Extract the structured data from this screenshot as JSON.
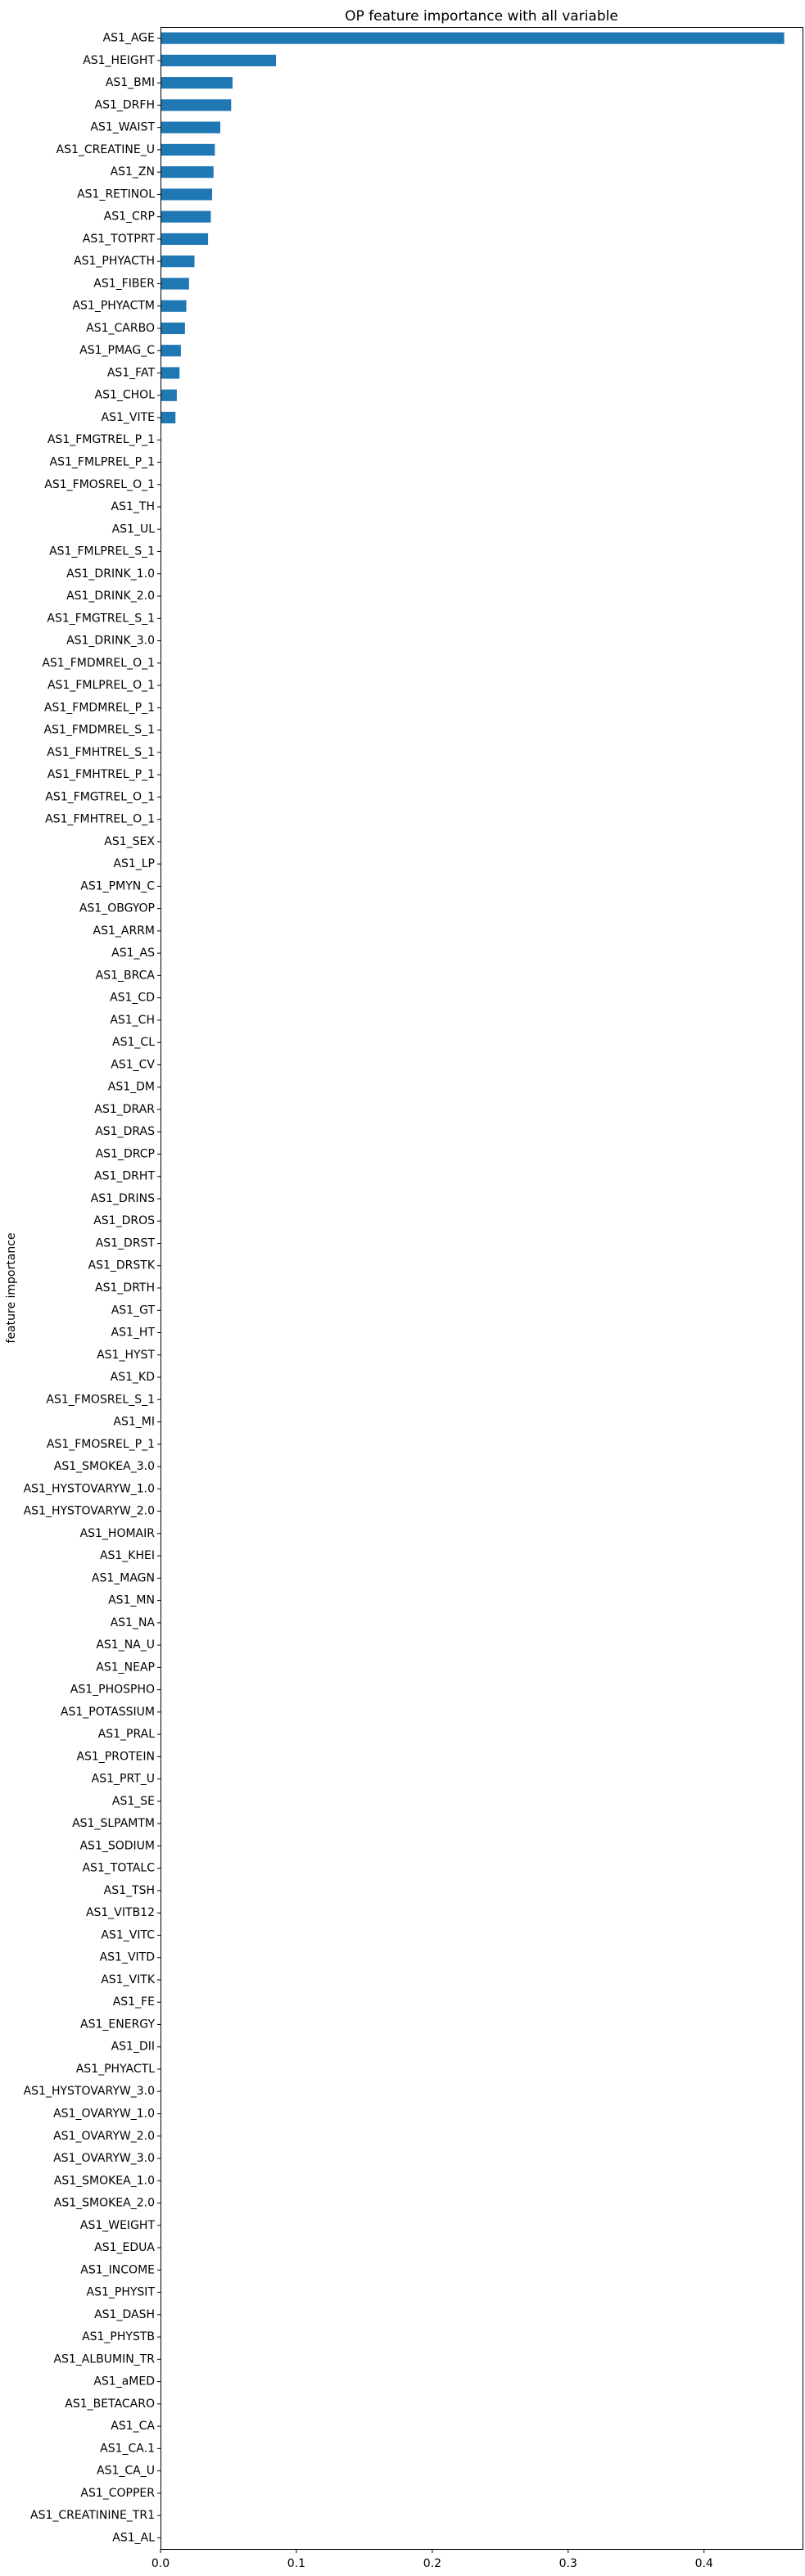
{
  "chart_data": {
    "type": "bar",
    "orientation": "horizontal",
    "title": "OP feature importance with all variable",
    "ylabel": "feature importance",
    "xlabel": "",
    "xlim": [
      0,
      0.4725
    ],
    "xticks": [
      "0.0",
      "0.1",
      "0.2",
      "0.3",
      "0.4"
    ],
    "grid": false,
    "bar_color": "#1f77b4",
    "categories": [
      "AS1_AGE",
      "AS1_HEIGHT",
      "AS1_BMI",
      "AS1_DRFH",
      "AS1_WAIST",
      "AS1_CREATINE_U",
      "AS1_ZN",
      "AS1_RETINOL",
      "AS1_CRP",
      "AS1_TOTPRT",
      "AS1_PHYACTH",
      "AS1_FIBER",
      "AS1_PHYACTM",
      "AS1_CARBO",
      "AS1_PMAG_C",
      "AS1_FAT",
      "AS1_CHOL",
      "AS1_VITE",
      "AS1_FMGTREL_P_1",
      "AS1_FMLPREL_P_1",
      "AS1_FMOSREL_O_1",
      "AS1_TH",
      "AS1_UL",
      "AS1_FMLPREL_S_1",
      "AS1_DRINK_1.0",
      "AS1_DRINK_2.0",
      "AS1_FMGTREL_S_1",
      "AS1_DRINK_3.0",
      "AS1_FMDMREL_O_1",
      "AS1_FMLPREL_O_1",
      "AS1_FMDMREL_P_1",
      "AS1_FMDMREL_S_1",
      "AS1_FMHTREL_S_1",
      "AS1_FMHTREL_P_1",
      "AS1_FMGTREL_O_1",
      "AS1_FMHTREL_O_1",
      "AS1_SEX",
      "AS1_LP",
      "AS1_PMYN_C",
      "AS1_OBGYOP",
      "AS1_ARRM",
      "AS1_AS",
      "AS1_BRCA",
      "AS1_CD",
      "AS1_CH",
      "AS1_CL",
      "AS1_CV",
      "AS1_DM",
      "AS1_DRAR",
      "AS1_DRAS",
      "AS1_DRCP",
      "AS1_DRHT",
      "AS1_DRINS",
      "AS1_DROS",
      "AS1_DRST",
      "AS1_DRSTK",
      "AS1_DRTH",
      "AS1_GT",
      "AS1_HT",
      "AS1_HYST",
      "AS1_KD",
      "AS1_FMOSREL_S_1",
      "AS1_MI",
      "AS1_FMOSREL_P_1",
      "AS1_SMOKEA_3.0",
      "AS1_HYSTOVARYW_1.0",
      "AS1_HYSTOVARYW_2.0",
      "AS1_HOMAIR",
      "AS1_KHEI",
      "AS1_MAGN",
      "AS1_MN",
      "AS1_NA",
      "AS1_NA_U",
      "AS1_NEAP",
      "AS1_PHOSPHO",
      "AS1_POTASSIUM",
      "AS1_PRAL",
      "AS1_PROTEIN",
      "AS1_PRT_U",
      "AS1_SE",
      "AS1_SLPAMTM",
      "AS1_SODIUM",
      "AS1_TOTALC",
      "AS1_TSH",
      "AS1_VITB12",
      "AS1_VITC",
      "AS1_VITD",
      "AS1_VITK",
      "AS1_FE",
      "AS1_ENERGY",
      "AS1_DII",
      "AS1_PHYACTL",
      "AS1_HYSTOVARYW_3.0",
      "AS1_OVARYW_1.0",
      "AS1_OVARYW_2.0",
      "AS1_OVARYW_3.0",
      "AS1_SMOKEA_1.0",
      "AS1_SMOKEA_2.0",
      "AS1_WEIGHT",
      "AS1_EDUA",
      "AS1_INCOME",
      "AS1_PHYSIT",
      "AS1_DASH",
      "AS1_PHYSTB",
      "AS1_ALBUMIN_TR",
      "AS1_aMED",
      "AS1_BETACARO",
      "AS1_CA",
      "AS1_CA.1",
      "AS1_CA_U",
      "AS1_COPPER",
      "AS1_CREATININE_TR1",
      "AS1_AL"
    ],
    "values": [
      0.459,
      0.085,
      0.053,
      0.052,
      0.044,
      0.04,
      0.039,
      0.038,
      0.037,
      0.035,
      0.025,
      0.021,
      0.019,
      0.018,
      0.015,
      0.014,
      0.012,
      0.011,
      0,
      0,
      0,
      0,
      0,
      0,
      0,
      0,
      0,
      0,
      0,
      0,
      0,
      0,
      0,
      0,
      0,
      0,
      0,
      0,
      0,
      0,
      0,
      0,
      0,
      0,
      0,
      0,
      0,
      0,
      0,
      0,
      0,
      0,
      0,
      0,
      0,
      0,
      0,
      0,
      0,
      0,
      0,
      0,
      0,
      0,
      0,
      0,
      0,
      0,
      0,
      0,
      0,
      0,
      0,
      0,
      0,
      0,
      0,
      0,
      0,
      0,
      0,
      0,
      0,
      0,
      0,
      0,
      0,
      0,
      0,
      0,
      0,
      0,
      0,
      0,
      0,
      0,
      0,
      0,
      0,
      0,
      0,
      0,
      0,
      0,
      0,
      0,
      0,
      0,
      0,
      0,
      0,
      0,
      0
    ]
  }
}
